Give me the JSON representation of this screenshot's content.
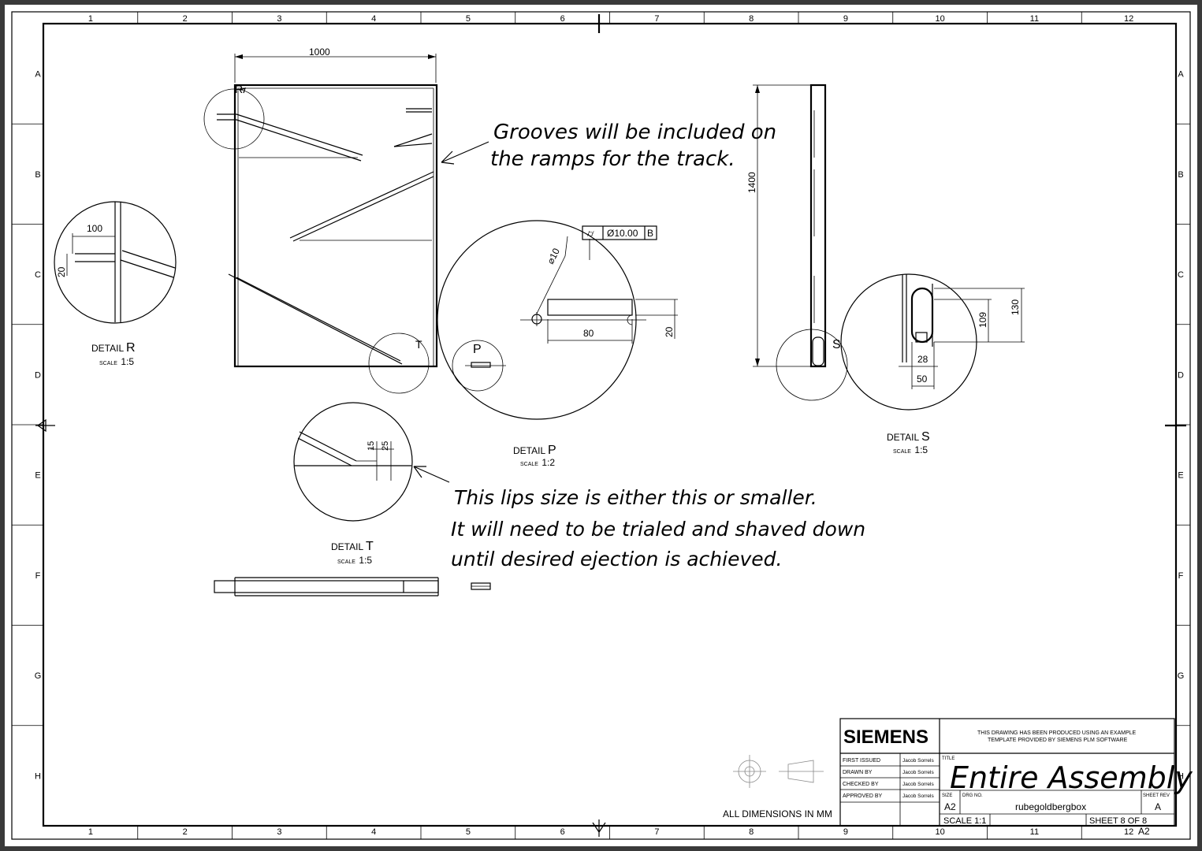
{
  "grid": {
    "columns": [
      "1",
      "2",
      "3",
      "4",
      "5",
      "6",
      "7",
      "8",
      "9",
      "10",
      "11",
      "12"
    ],
    "rows": [
      "A",
      "B",
      "C",
      "D",
      "E",
      "F",
      "G",
      "H"
    ]
  },
  "dimensions": {
    "width_top": "1000",
    "height_side": "1400",
    "detail_r_width": "100",
    "detail_r_height": "20",
    "detail_p_dia": "⌀10",
    "detail_p_len": "80",
    "detail_p_h": "20",
    "detail_t_a": "15",
    "detail_t_b": "25",
    "detail_s_a": "109",
    "detail_s_b": "130",
    "detail_s_c": "28",
    "detail_s_d": "50"
  },
  "gdt_frame": {
    "symbol": "⌭",
    "value": "Ø10.00",
    "datum": "B"
  },
  "callout_markers": {
    "r": "R",
    "t": "T",
    "p": "P",
    "s": "S"
  },
  "details": {
    "r": {
      "word": "DETAIL",
      "letter": "R",
      "scale_word": "SCALE",
      "scale": "1:5"
    },
    "p": {
      "word": "DETAIL",
      "letter": "P",
      "scale_word": "SCALE",
      "scale": "1:2"
    },
    "t": {
      "word": "DETAIL",
      "letter": "T",
      "scale_word": "SCALE",
      "scale": "1:5"
    },
    "s": {
      "word": "DETAIL",
      "letter": "S",
      "scale_word": "SCALE",
      "scale": "1:5"
    }
  },
  "notes": {
    "grooves": [
      "Grooves will be included on",
      "the ramps for the track."
    ],
    "lips": [
      "This lips size is either this or smaller.",
      "It will need to be trialed and shaved down",
      "until desired ejection is achieved."
    ]
  },
  "all_dims": "ALL DIMENSIONS IN MM",
  "title_block": {
    "brand": "SIEMENS",
    "template_note": [
      "THIS DRAWING HAS BEEN PRODUCED USING AN EXAMPLE",
      "TEMPLATE PROVIDED BY SIEMENS PLM SOFTWARE"
    ],
    "rows": [
      {
        "label": "FIRST ISSUED",
        "name": "Jacob Sorrels"
      },
      {
        "label": "DRAWN BY",
        "name": "Jacob Sorrels"
      },
      {
        "label": "CHECKED BY",
        "name": "Jacob Sorrels"
      },
      {
        "label": "APPROVED BY",
        "name": "Jacob Sorrels"
      }
    ],
    "title_label": "TITLE",
    "title": "Entire Assembly",
    "size_label": "SIZE",
    "size": "A2",
    "drg_label": "DRG NO.",
    "drg": "rubegoldbergbox",
    "rev_label": "SHEET REV",
    "rev": "A",
    "scale": "SCALE 1:1",
    "sheet": "SHEET 8 OF 8",
    "format": "A2"
  }
}
